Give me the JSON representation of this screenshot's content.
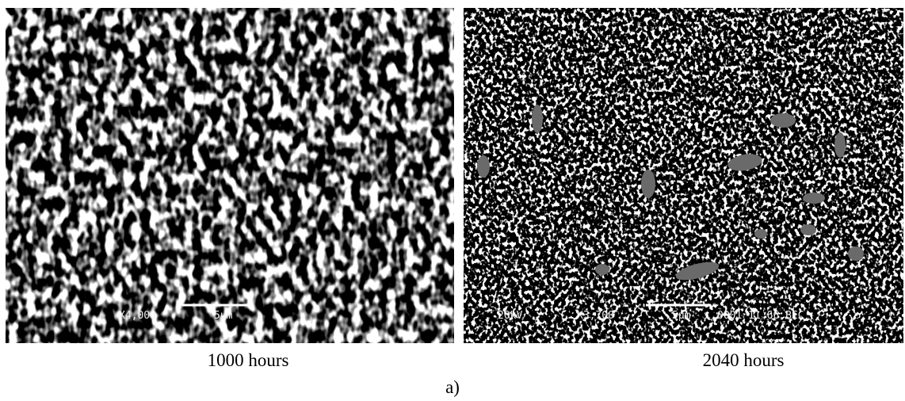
{
  "panels": [
    {
      "overlay": [
        "X4,000",
        "5µm"
      ],
      "caption": "1000 hours"
    },
    {
      "overlay": [
        "20kV",
        "X3,700",
        "5µm",
        "0001 11 66 BEC"
      ],
      "caption": "2040 hours"
    }
  ],
  "label": "a)"
}
